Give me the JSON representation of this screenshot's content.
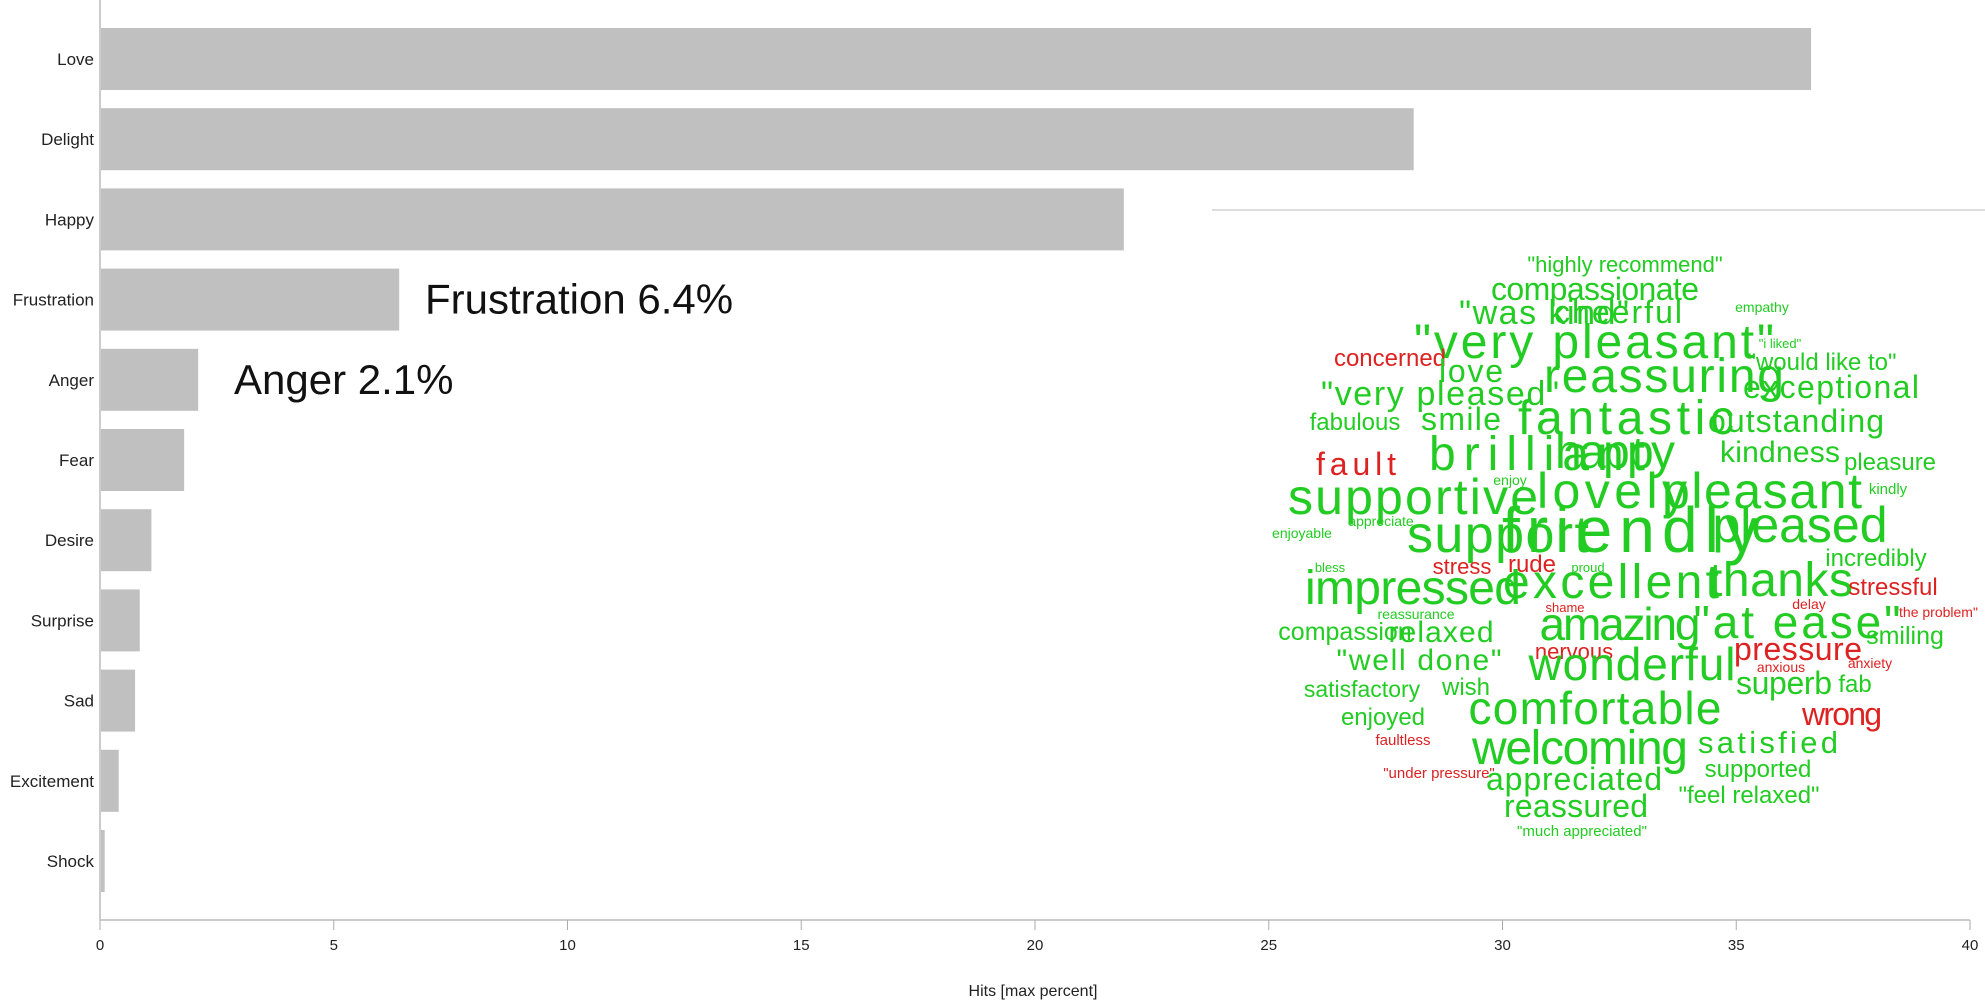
{
  "chart_data": {
    "type": "bar",
    "orientation": "horizontal",
    "categories": [
      "Love",
      "Delight",
      "Happy",
      "Frustration",
      "Anger",
      "Fear",
      "Desire",
      "Surprise",
      "Sad",
      "Excitement",
      "Shock"
    ],
    "values": [
      36.6,
      28.1,
      21.9,
      6.4,
      2.1,
      1.8,
      1.1,
      0.85,
      0.75,
      0.4,
      0.1
    ],
    "xlabel": "Hits [max percent]",
    "ylabel": "",
    "xlim": [
      0,
      40
    ],
    "xticks": [
      0,
      5,
      10,
      15,
      20,
      25,
      30,
      35,
      40
    ],
    "bar_color": "#c0c0c0",
    "grid": false,
    "annotations": [
      {
        "text": "Frustration 6.4%",
        "category": "Frustration"
      },
      {
        "text": "Anger 2.1%",
        "category": "Anger"
      }
    ]
  },
  "word_cloud": {
    "positive_color": "#22cc22",
    "negative_color": "#dd2222",
    "words": [
      {
        "text": "\"highly recommend\"",
        "sentiment": "positive"
      },
      {
        "text": "compassionate",
        "sentiment": "positive"
      },
      {
        "text": "\"was kind\"",
        "sentiment": "positive"
      },
      {
        "text": "cheerful",
        "sentiment": "positive"
      },
      {
        "text": "empathy",
        "sentiment": "positive"
      },
      {
        "text": "\"very pleasant\"",
        "sentiment": "positive"
      },
      {
        "text": "\"i liked\"",
        "sentiment": "positive"
      },
      {
        "text": "concerned",
        "sentiment": "negative"
      },
      {
        "text": "\"would like to\"",
        "sentiment": "positive"
      },
      {
        "text": "love",
        "sentiment": "positive"
      },
      {
        "text": "reassuring",
        "sentiment": "positive"
      },
      {
        "text": "\"very pleased\"",
        "sentiment": "positive"
      },
      {
        "text": "exceptional",
        "sentiment": "positive"
      },
      {
        "text": "fabulous",
        "sentiment": "positive"
      },
      {
        "text": "smile",
        "sentiment": "positive"
      },
      {
        "text": "fantastic",
        "sentiment": "positive"
      },
      {
        "text": "outstanding",
        "sentiment": "positive"
      },
      {
        "text": "fault",
        "sentiment": "negative"
      },
      {
        "text": "brilliant",
        "sentiment": "positive"
      },
      {
        "text": "happy",
        "sentiment": "positive"
      },
      {
        "text": "kindness",
        "sentiment": "positive"
      },
      {
        "text": "pleasure",
        "sentiment": "positive"
      },
      {
        "text": "supportive",
        "sentiment": "positive"
      },
      {
        "text": "enjoy",
        "sentiment": "positive"
      },
      {
        "text": "lovely",
        "sentiment": "positive"
      },
      {
        "text": "pleasant",
        "sentiment": "positive"
      },
      {
        "text": "kindly",
        "sentiment": "positive"
      },
      {
        "text": "enjoyable",
        "sentiment": "positive"
      },
      {
        "text": "appreciate",
        "sentiment": "positive"
      },
      {
        "text": "support",
        "sentiment": "positive"
      },
      {
        "text": "friendly",
        "sentiment": "positive"
      },
      {
        "text": "pleased",
        "sentiment": "positive"
      },
      {
        "text": "bless",
        "sentiment": "positive"
      },
      {
        "text": "stress",
        "sentiment": "negative"
      },
      {
        "text": "rude",
        "sentiment": "negative"
      },
      {
        "text": "proud",
        "sentiment": "positive"
      },
      {
        "text": "incredibly",
        "sentiment": "positive"
      },
      {
        "text": "impressed",
        "sentiment": "positive"
      },
      {
        "text": "excellent",
        "sentiment": "positive"
      },
      {
        "text": "thanks",
        "sentiment": "positive"
      },
      {
        "text": "stressful",
        "sentiment": "negative"
      },
      {
        "text": "reassurance",
        "sentiment": "positive"
      },
      {
        "text": "shame",
        "sentiment": "negative"
      },
      {
        "text": "delay",
        "sentiment": "negative"
      },
      {
        "text": "\"the problem\"",
        "sentiment": "negative"
      },
      {
        "text": "compassion",
        "sentiment": "positive"
      },
      {
        "text": "relaxed",
        "sentiment": "positive"
      },
      {
        "text": "amazing",
        "sentiment": "positive"
      },
      {
        "text": "\"at ease\"",
        "sentiment": "positive"
      },
      {
        "text": "smiling",
        "sentiment": "positive"
      },
      {
        "text": "nervous",
        "sentiment": "negative"
      },
      {
        "text": "pressure",
        "sentiment": "negative"
      },
      {
        "text": "\"well done\"",
        "sentiment": "positive"
      },
      {
        "text": "wonderful",
        "sentiment": "positive"
      },
      {
        "text": "anxious",
        "sentiment": "negative"
      },
      {
        "text": "anxiety",
        "sentiment": "negative"
      },
      {
        "text": "satisfactory",
        "sentiment": "positive"
      },
      {
        "text": "wish",
        "sentiment": "positive"
      },
      {
        "text": "superb",
        "sentiment": "positive"
      },
      {
        "text": "fab",
        "sentiment": "positive"
      },
      {
        "text": "enjoyed",
        "sentiment": "positive"
      },
      {
        "text": "comfortable",
        "sentiment": "positive"
      },
      {
        "text": "wrong",
        "sentiment": "negative"
      },
      {
        "text": "faultless",
        "sentiment": "negative"
      },
      {
        "text": "welcoming",
        "sentiment": "positive"
      },
      {
        "text": "satisfied",
        "sentiment": "positive"
      },
      {
        "text": "\"under pressure\"",
        "sentiment": "negative"
      },
      {
        "text": "appreciated",
        "sentiment": "positive"
      },
      {
        "text": "supported",
        "sentiment": "positive"
      },
      {
        "text": "\"feel relaxed\"",
        "sentiment": "positive"
      },
      {
        "text": "reassured",
        "sentiment": "positive"
      },
      {
        "text": "\"much appreciated\"",
        "sentiment": "positive"
      }
    ]
  }
}
